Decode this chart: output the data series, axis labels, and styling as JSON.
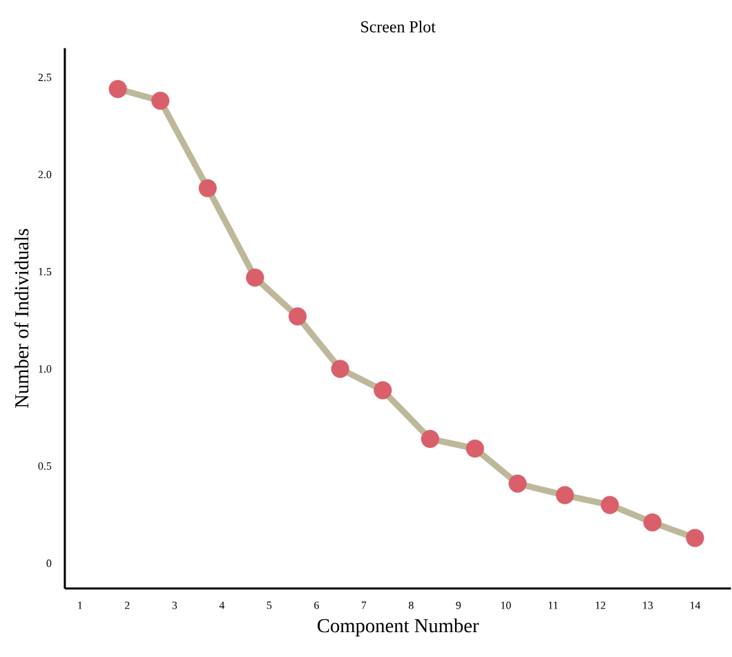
{
  "chart_data": {
    "type": "line",
    "title": "Screen Plot",
    "xlabel": "Component Number",
    "ylabel": "Number of Individuals",
    "x": [
      1.8,
      2.7,
      3.7,
      4.7,
      5.6,
      6.5,
      7.4,
      8.4,
      9.35,
      10.25,
      11.25,
      12.2,
      13.1,
      14.0
    ],
    "series": [
      {
        "color": "#bdb89a",
        "colors": [
          "#d9606b",
          "#d9606b",
          "#d9606b",
          "#d9606b",
          "#d9606b",
          "#d9606b",
          "#d9606b",
          "#d9606b",
          "#d9606b",
          "#d9606b",
          "#d9606b",
          "#d9606b",
          "#d9606b",
          "#d9606b"
        ],
        "values": [
          2.44,
          2.38,
          1.93,
          1.47,
          1.27,
          1.0,
          0.89,
          0.64,
          0.59,
          0.41,
          0.35,
          0.3,
          0.21,
          0.13
        ]
      }
    ],
    "xlim": [
      0.68,
      14.76
    ],
    "ylim": [
      -0.13,
      2.65
    ],
    "xticks": [
      1,
      2,
      3,
      4,
      5,
      6,
      7,
      8,
      9,
      10,
      11,
      12,
      13,
      14
    ],
    "yticks": [
      0,
      {
        "value": 0.5,
        "label": "0.5"
      },
      {
        "value": 1,
        "label": "1.0"
      },
      {
        "value": 1.5,
        "label": "1.5"
      },
      {
        "value": 2,
        "label": "2.0"
      },
      {
        "value": 2.5,
        "label": "2.5"
      }
    ],
    "marker": "circle",
    "line_style": "solid",
    "grid": false
  }
}
